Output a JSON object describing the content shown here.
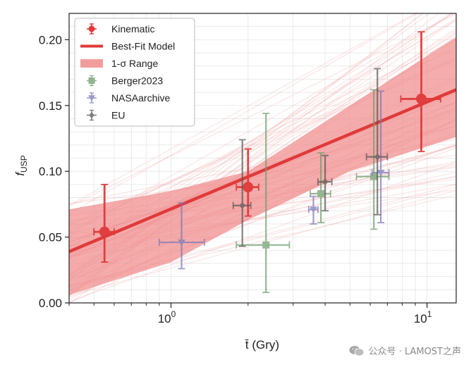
{
  "chart_data": {
    "type": "scatter",
    "xlabel": "t̄ (Gry)",
    "ylabel": "fUSP",
    "xscale": "log",
    "xlim": [
      0.4,
      13
    ],
    "ylim": [
      0.0,
      0.22
    ],
    "yticks": [
      "0.00",
      "0.05",
      "0.10",
      "0.15",
      "0.20"
    ],
    "xticks": [
      {
        "value": 1,
        "label": "10",
        "exp": "0"
      },
      {
        "value": 10,
        "label": "10",
        "exp": "1"
      }
    ],
    "grid": true,
    "legend_position": "top-left",
    "best_fit": {
      "name": "Best-Fit Model",
      "color": "#e03a3a",
      "points": [
        [
          0.4,
          0.039
        ],
        [
          13,
          0.162
        ]
      ]
    },
    "band": {
      "name": "1-σ Range",
      "color": "#f08c8c",
      "upper": [
        [
          0.4,
          0.071
        ],
        [
          1,
          0.085
        ],
        [
          2,
          0.1
        ],
        [
          5,
          0.15
        ],
        [
          13,
          0.202
        ]
      ],
      "lower": [
        [
          0.4,
          0.006
        ],
        [
          1,
          0.031
        ],
        [
          2,
          0.063
        ],
        [
          5,
          0.1
        ],
        [
          13,
          0.126
        ]
      ]
    },
    "series": [
      {
        "name": "Kinematic",
        "marker": "circle",
        "color": "#e03a3a",
        "points": [
          {
            "x": 0.55,
            "y": 0.054,
            "xerr": [
              0.05,
              0.05
            ],
            "yerr": [
              0.023,
              0.036
            ]
          },
          {
            "x": 2.0,
            "y": 0.088,
            "xerr": [
              0.2,
              0.2
            ],
            "yerr": [
              0.022,
              0.029
            ]
          },
          {
            "x": 9.5,
            "y": 0.155,
            "xerr": [
              1.6,
              1.8
            ],
            "yerr": [
              0.04,
              0.051
            ]
          }
        ]
      },
      {
        "name": "Berger2023",
        "marker": "square",
        "color": "#6b9e6b",
        "points": [
          {
            "x": 2.35,
            "y": 0.044,
            "xerr": [
              0.55,
              0.55
            ],
            "yerr": [
              0.036,
              0.1
            ]
          },
          {
            "x": 3.85,
            "y": 0.083,
            "xerr": [
              0.35,
              0.35
            ],
            "yerr": [
              0.022,
              0.031
            ]
          },
          {
            "x": 6.2,
            "y": 0.096,
            "xerr": [
              0.9,
              0.9
            ],
            "yerr": [
              0.04,
              0.066
            ]
          }
        ]
      },
      {
        "name": "NASAarchive",
        "marker": "triangle-down",
        "color": "#7a7ab8",
        "points": [
          {
            "x": 1.1,
            "y": 0.046,
            "xerr": [
              0.2,
              0.25
            ],
            "yerr": [
              0.02,
              0.03
            ]
          },
          {
            "x": 3.6,
            "y": 0.071,
            "xerr": [
              0.15,
              0.15
            ],
            "yerr": [
              0.011,
              0.01
            ]
          },
          {
            "x": 6.6,
            "y": 0.099,
            "xerr": [
              0.5,
              0.5
            ],
            "yerr": [
              0.038,
              0.062
            ]
          }
        ]
      },
      {
        "name": "EU",
        "marker": "diamond",
        "color": "#555555",
        "points": [
          {
            "x": 1.9,
            "y": 0.074,
            "xerr": [
              0.15,
              0.15
            ],
            "yerr": [
              0.031,
              0.05
            ]
          },
          {
            "x": 4.0,
            "y": 0.092,
            "xerr": [
              0.25,
              0.25
            ],
            "yerr": [
              0.022,
              0.02
            ]
          },
          {
            "x": 6.4,
            "y": 0.111,
            "xerr": [
              0.6,
              0.6
            ],
            "yerr": [
              0.044,
              0.067
            ]
          }
        ]
      }
    ]
  },
  "legend": {
    "items": [
      {
        "label": "Kinematic",
        "kind": "errpoint",
        "marker": "circle",
        "color": "#e03a3a"
      },
      {
        "label": "Best-Fit Model",
        "kind": "line",
        "color": "#e03a3a"
      },
      {
        "label": "1-σ Range",
        "kind": "patch",
        "color": "#f08c8c"
      },
      {
        "label": "Berger2023",
        "kind": "errpoint",
        "marker": "square",
        "color": "#6b9e6b"
      },
      {
        "label": "NASAarchive",
        "kind": "errpoint",
        "marker": "triangle-down",
        "color": "#7a7ab8"
      },
      {
        "label": "EU",
        "kind": "errpoint",
        "marker": "diamond",
        "color": "#555555"
      }
    ]
  },
  "watermark": {
    "text": "公众号 · LAMOST之声",
    "icon": "wechat-icon"
  }
}
